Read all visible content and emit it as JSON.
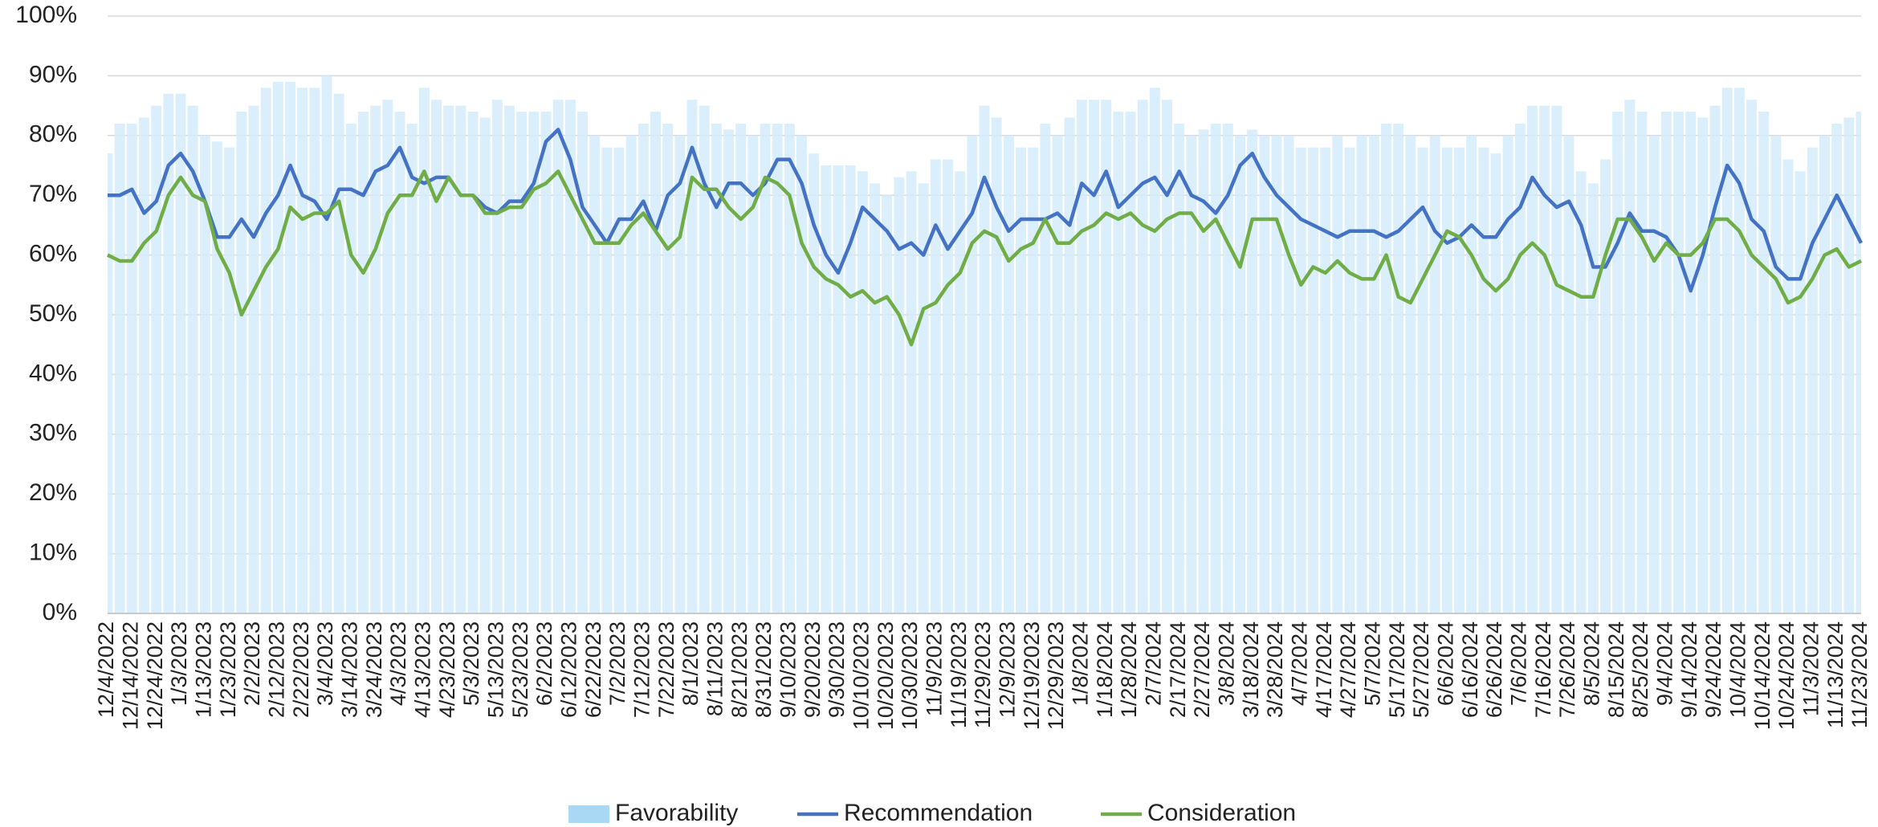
{
  "chart_data": {
    "type": "bar_line",
    "categories": [
      "12/4/2022",
      null,
      "12/14/2022",
      null,
      "12/24/2022",
      null,
      "1/3/2023",
      null,
      "1/13/2023",
      null,
      "1/23/2023",
      null,
      "2/2/2023",
      null,
      "2/12/2023",
      null,
      "2/22/2023",
      null,
      "3/4/2023",
      null,
      "3/14/2023",
      null,
      "3/24/2023",
      null,
      "4/3/2023",
      null,
      "4/13/2023",
      null,
      "4/23/2023",
      null,
      "5/3/2023",
      null,
      "5/13/2023",
      null,
      "5/23/2023",
      null,
      "6/2/2023",
      null,
      "6/12/2023",
      null,
      "6/22/2023",
      null,
      "7/2/2023",
      null,
      "7/12/2023",
      null,
      "7/22/2023",
      null,
      "8/1/2023",
      null,
      "8/11/2023",
      null,
      "8/21/2023",
      null,
      "8/31/2023",
      null,
      "9/10/2023",
      null,
      "9/20/2023",
      null,
      "9/30/2023",
      null,
      "10/10/2023",
      null,
      "10/20/2023",
      null,
      "10/30/2023",
      null,
      "11/9/2023",
      null,
      "11/19/2023",
      null,
      "11/29/2023",
      null,
      "12/9/2023",
      null,
      "12/19/2023",
      null,
      "12/29/2023",
      null,
      "1/8/2024",
      null,
      "1/18/2024",
      null,
      "1/28/2024",
      null,
      "2/7/2024",
      null,
      "2/17/2024",
      null,
      "2/27/2024",
      null,
      "3/8/2024",
      null,
      "3/18/2024",
      null,
      "3/28/2024",
      null,
      "4/7/2024",
      null,
      "4/17/2024",
      null,
      "4/27/2024",
      null,
      "5/7/2024",
      null,
      "5/17/2024",
      null,
      "5/27/2024",
      null,
      "6/6/2024",
      null,
      "6/16/2024",
      null,
      "6/26/2024",
      null,
      "7/6/2024",
      null,
      "7/16/2024",
      null,
      "7/26/2024",
      null,
      "8/5/2024",
      null,
      "8/15/2024",
      null,
      "8/25/2024",
      null,
      "9/4/2024",
      null,
      "9/14/2024",
      null,
      "9/24/2024",
      null,
      "10/4/2024",
      null,
      "10/14/2024",
      null,
      "10/24/2024",
      null,
      "11/3/2024",
      null,
      "11/13/2024",
      null,
      "11/23/2024"
    ],
    "series": [
      {
        "name": "Favorability",
        "kind": "bar",
        "color": "#d3ecfa",
        "values": [
          77,
          82,
          82,
          83,
          85,
          87,
          87,
          85,
          80,
          79,
          78,
          84,
          85,
          88,
          89,
          89,
          88,
          88,
          90,
          87,
          82,
          84,
          85,
          86,
          84,
          82,
          88,
          86,
          85,
          85,
          84,
          83,
          86,
          85,
          84,
          84,
          84,
          86,
          86,
          84,
          80,
          78,
          78,
          80,
          82,
          84,
          82,
          80,
          86,
          85,
          82,
          81,
          82,
          80,
          82,
          82,
          82,
          80,
          77,
          75,
          75,
          75,
          74,
          72,
          70,
          73,
          74,
          72,
          76,
          76,
          74,
          80,
          85,
          83,
          80,
          78,
          78,
          82,
          80,
          83,
          86,
          86,
          86,
          84,
          84,
          86,
          88,
          86,
          82,
          80,
          81,
          82,
          82,
          80,
          81,
          80,
          80,
          80,
          78,
          78,
          78,
          80,
          78,
          80,
          80,
          82,
          82,
          80,
          78,
          80,
          78,
          78,
          80,
          78,
          77,
          80,
          82,
          85,
          85,
          85,
          80,
          74,
          72,
          76,
          84,
          86,
          84,
          80,
          84,
          84,
          84,
          83,
          85,
          88,
          88,
          86,
          84,
          80,
          76,
          74,
          78,
          80,
          82,
          83,
          84
        ]
      },
      {
        "name": "Recommendation",
        "kind": "line",
        "color": "#4472c4",
        "values": [
          70,
          70,
          71,
          67,
          69,
          75,
          77,
          74,
          69,
          63,
          63,
          66,
          63,
          67,
          70,
          75,
          70,
          69,
          66,
          71,
          71,
          70,
          74,
          75,
          78,
          73,
          72,
          73,
          73,
          70,
          70,
          68,
          67,
          69,
          69,
          72,
          79,
          81,
          76,
          68,
          65,
          62,
          66,
          66,
          69,
          64,
          70,
          72,
          78,
          72,
          68,
          72,
          72,
          70,
          72,
          76,
          76,
          72,
          65,
          60,
          57,
          62,
          68,
          66,
          64,
          61,
          62,
          60,
          65,
          61,
          64,
          67,
          73,
          68,
          64,
          66,
          66,
          66,
          67,
          65,
          72,
          70,
          74,
          68,
          70,
          72,
          73,
          70,
          74,
          70,
          69,
          67,
          70,
          75,
          77,
          73,
          70,
          68,
          66,
          65,
          64,
          63,
          64,
          64,
          64,
          63,
          64,
          66,
          68,
          64,
          62,
          63,
          65,
          63,
          63,
          66,
          68,
          73,
          70,
          68,
          69,
          65,
          58,
          58,
          62,
          67,
          64,
          64,
          63,
          60,
          54,
          60,
          68,
          75,
          72,
          66,
          64,
          58,
          56,
          56,
          62,
          66,
          70,
          66,
          62
        ]
      },
      {
        "name": "Consideration",
        "kind": "line",
        "color": "#70ad47",
        "values": [
          60,
          59,
          59,
          62,
          64,
          70,
          73,
          70,
          69,
          61,
          57,
          50,
          54,
          58,
          61,
          68,
          66,
          67,
          67,
          69,
          60,
          57,
          61,
          67,
          70,
          70,
          74,
          69,
          73,
          70,
          70,
          67,
          67,
          68,
          68,
          71,
          72,
          74,
          70,
          66,
          62,
          62,
          62,
          65,
          67,
          64,
          61,
          63,
          73,
          71,
          71,
          68,
          66,
          68,
          73,
          72,
          70,
          62,
          58,
          56,
          55,
          53,
          54,
          52,
          53,
          50,
          45,
          51,
          52,
          55,
          57,
          62,
          64,
          63,
          59,
          61,
          62,
          66,
          62,
          62,
          64,
          65,
          67,
          66,
          67,
          65,
          64,
          66,
          67,
          67,
          64,
          66,
          62,
          58,
          66,
          66,
          66,
          60,
          55,
          58,
          57,
          59,
          57,
          56,
          56,
          60,
          53,
          52,
          56,
          60,
          64,
          63,
          60,
          56,
          54,
          56,
          60,
          62,
          60,
          55,
          54,
          53,
          53,
          60,
          66,
          66,
          63,
          59,
          62,
          60,
          60,
          62,
          66,
          66,
          64,
          60,
          58,
          56,
          52,
          53,
          56,
          60,
          61,
          58,
          59
        ]
      }
    ],
    "ylim": [
      0,
      100
    ],
    "yticks": [
      {
        "value": 0,
        "label": "0%"
      },
      {
        "value": 10,
        "label": "10%"
      },
      {
        "value": 20,
        "label": "20%"
      },
      {
        "value": 30,
        "label": "30%"
      },
      {
        "value": 40,
        "label": "40%"
      },
      {
        "value": 50,
        "label": "50%"
      },
      {
        "value": 60,
        "label": "60%"
      },
      {
        "value": 70,
        "label": "70%"
      },
      {
        "value": 80,
        "label": "80%"
      },
      {
        "value": 90,
        "label": "90%"
      },
      {
        "value": 100,
        "label": "100%"
      }
    ],
    "grid": true,
    "legend": "bottom"
  }
}
